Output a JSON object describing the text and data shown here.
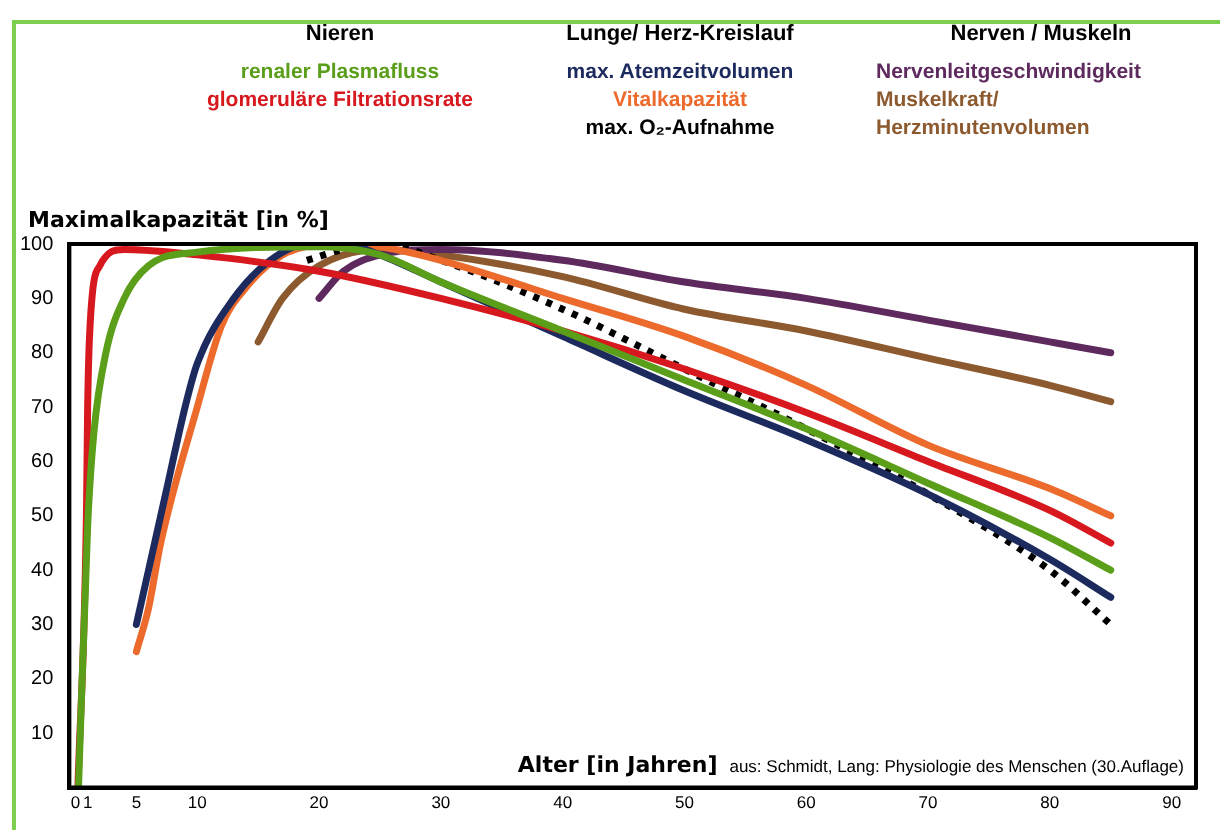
{
  "chart_data": {
    "type": "line",
    "ylabel": "Maximalkapazität [in %]",
    "xlabel": "Alter [in Jahren]",
    "annotations": [
      "Nieren",
      "Lunge/ Herz-Kreislauf",
      "Nerven / Muskeln",
      "aus: Schmidt, Lang: Physiologie des Menschen (30.Auflage)"
    ],
    "xlim": [
      -0.5,
      92
    ],
    "xticks": [
      0,
      1,
      5,
      10,
      20,
      30,
      40,
      50,
      60,
      70,
      80,
      90
    ],
    "ylim": [
      0,
      100
    ],
    "yticks": [
      10,
      20,
      30,
      40,
      50,
      60,
      70,
      80,
      90,
      100
    ],
    "grid": false,
    "legend": "top",
    "marker": "none",
    "series": [
      {
        "name": "renaler Plasmafluss",
        "color": "#5a9e1a",
        "line_style": "solid",
        "x": [
          0.25,
          1,
          1.5,
          2.5,
          4,
          6,
          10,
          20,
          25,
          30,
          40,
          50,
          60,
          70,
          80,
          85
        ],
        "values": [
          0,
          48,
          65,
          80,
          90,
          96,
          98.5,
          99.5,
          98,
          93,
          84,
          75,
          66,
          56,
          46,
          40
        ]
      },
      {
        "name": "glomeruläre Filtrationsrate",
        "color": "#d7191f",
        "line_style": "solid",
        "x": [
          0.2,
          0.9,
          1,
          1.2,
          2,
          4,
          10,
          20,
          30,
          40,
          50,
          60,
          70,
          80,
          85
        ],
        "values": [
          0,
          50,
          70,
          85,
          96,
          99,
          98,
          95,
          90,
          84,
          77,
          69,
          60,
          51,
          45
        ]
      },
      {
        "name": "max. Atemzeitvolumen",
        "color": "#1c2a5e",
        "line_style": "solid",
        "x": [
          5,
          6,
          7.5,
          9,
          10,
          13,
          16,
          19,
          22,
          25,
          30,
          40,
          50,
          60,
          70,
          80,
          85
        ],
        "values": [
          30,
          40,
          55,
          70,
          78,
          90,
          97,
          100,
          100,
          98,
          93,
          83,
          73,
          64,
          54,
          42,
          35
        ]
      },
      {
        "name": "Vitalkapazität",
        "color": "#ec6a2c",
        "line_style": "solid",
        "x": [
          5,
          6,
          7,
          10,
          12,
          14,
          17,
          21,
          25,
          30,
          40,
          50,
          60,
          70,
          80,
          85
        ],
        "values": [
          25,
          33,
          45,
          70,
          85,
          92,
          98,
          100,
          99.5,
          97,
          90,
          83,
          74,
          63,
          55,
          50
        ]
      },
      {
        "name": "max. O₂-Aufnahme",
        "color": "#000000",
        "line_style": "dotted",
        "x": [
          19,
          22,
          25,
          30,
          40,
          50,
          60,
          70,
          80,
          85
        ],
        "values": [
          97,
          99,
          100,
          97,
          88,
          77,
          66,
          54,
          40,
          30
        ]
      },
      {
        "name": "Nervenleitgeschwindigkeit",
        "color": "#5e2a5e",
        "line_style": "solid",
        "x": [
          20,
          22,
          25,
          30,
          40,
          50,
          60,
          70,
          80,
          85
        ],
        "values": [
          90,
          95,
          98,
          99,
          97,
          93,
          90,
          86,
          82,
          80
        ]
      },
      {
        "name": "Muskelkraft/ Herzminutenvolumen",
        "color": "#8c5a2e",
        "line_style": "solid",
        "x": [
          15,
          17,
          20,
          25,
          30,
          40,
          50,
          60,
          70,
          80,
          85
        ],
        "values": [
          82,
          90,
          96,
          99,
          98,
          94,
          88,
          84,
          79,
          74,
          71
        ]
      }
    ]
  }
}
